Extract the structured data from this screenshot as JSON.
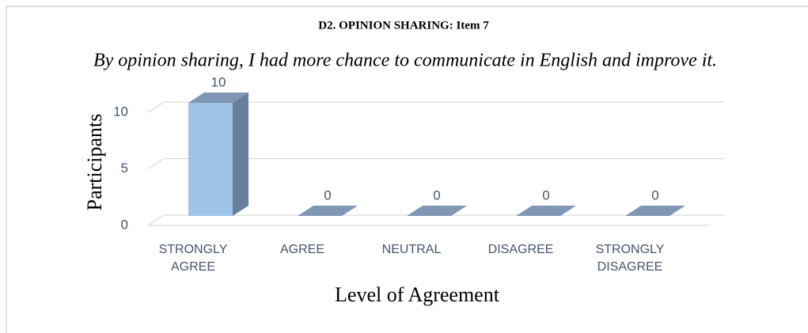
{
  "chart_data": {
    "type": "bar3d",
    "title": "D2. OPINION SHARING: Item 7",
    "subtitle": "By opinion sharing, I had more chance to communicate in English and improve it.",
    "categories": [
      "STRONGLY AGREE",
      "AGREE",
      "NEUTRAL",
      "DISAGREE",
      "STRONGLY DISAGREE"
    ],
    "values": [
      10,
      0,
      0,
      0,
      0
    ],
    "color": "#9dc3e6",
    "xlabel": "Level of Agreement",
    "ylabel": "Participants",
    "ylim": [
      0,
      10
    ],
    "yticks": [
      0,
      5,
      10
    ],
    "grid": true
  }
}
